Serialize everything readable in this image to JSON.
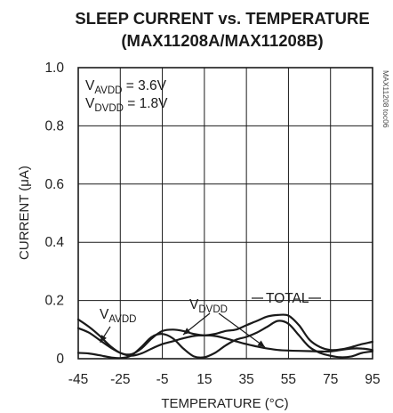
{
  "chart_data": {
    "type": "line",
    "title": "SLEEP CURRENT vs. TEMPERATURE",
    "subtitle": "(MAX11208A/MAX11208B)",
    "xlabel": "TEMPERATURE (°C)",
    "ylabel": "CURRENT (μA)",
    "xlim": [
      -45,
      95
    ],
    "ylim": [
      0,
      1.0
    ],
    "x_ticks": [
      -45,
      -25,
      -5,
      15,
      35,
      55,
      75,
      95
    ],
    "x_tick_labels": [
      "-45",
      "-25",
      "-5",
      "15",
      "35",
      "55",
      "75",
      "95"
    ],
    "y_ticks": [
      0,
      0.2,
      0.4,
      0.6,
      0.8,
      1.0
    ],
    "y_tick_labels": [
      "0",
      "0.2",
      "0.4",
      "0.6",
      "0.8",
      "1.0"
    ],
    "grid": true,
    "conditions": [
      {
        "main": "V",
        "sub": "AVDD",
        "rest": " = 3.6V"
      },
      {
        "main": "V",
        "sub": "DVDD",
        "rest": " = 1.8V"
      }
    ],
    "side_note": "MAX11208 toc06",
    "series": [
      {
        "name": "VAVDD",
        "label_main": "V",
        "label_sub": "AVDD",
        "x": [
          -45,
          -40,
          -35,
          -30,
          -25,
          -20,
          -15,
          -10,
          -5,
          0,
          5,
          10,
          15,
          20,
          25,
          30,
          35,
          40,
          45,
          50,
          55,
          60,
          65,
          70,
          75,
          80,
          85,
          90,
          95
        ],
        "values": [
          0.105,
          0.09,
          0.065,
          0.04,
          0.02,
          0.01,
          0.018,
          0.035,
          0.05,
          0.06,
          0.07,
          0.078,
          0.08,
          0.078,
          0.07,
          0.06,
          0.05,
          0.042,
          0.035,
          0.03,
          0.028,
          0.027,
          0.026,
          0.025,
          0.025,
          0.03,
          0.035,
          0.035,
          0.03
        ]
      },
      {
        "name": "VDVDD",
        "label_main": "V",
        "label_sub": "DVDD",
        "x": [
          -45,
          -40,
          -35,
          -30,
          -25,
          -20,
          -15,
          -10,
          -5,
          0,
          5,
          10,
          15,
          20,
          25,
          30,
          35,
          40,
          45,
          50,
          55,
          60,
          65,
          70,
          75,
          80,
          85,
          90,
          95
        ],
        "values": [
          0.02,
          0.018,
          0.012,
          0.005,
          0.002,
          0.01,
          0.04,
          0.075,
          0.085,
          0.07,
          0.035,
          0.008,
          0.005,
          0.02,
          0.045,
          0.065,
          0.075,
          0.09,
          0.11,
          0.13,
          0.12,
          0.08,
          0.04,
          0.02,
          0.01,
          0.005,
          0.008,
          0.02,
          0.025
        ]
      },
      {
        "name": "TOTAL",
        "label_main": "TOTAL",
        "label_sub": "",
        "x": [
          -45,
          -40,
          -35,
          -30,
          -25,
          -20,
          -15,
          -10,
          -5,
          0,
          5,
          10,
          15,
          20,
          25,
          30,
          35,
          40,
          45,
          50,
          55,
          60,
          65,
          70,
          75,
          80,
          85,
          90,
          95
        ],
        "values": [
          0.135,
          0.11,
          0.08,
          0.045,
          0.02,
          0.015,
          0.035,
          0.07,
          0.095,
          0.1,
          0.095,
          0.085,
          0.08,
          0.085,
          0.095,
          0.1,
          0.115,
          0.13,
          0.145,
          0.15,
          0.148,
          0.115,
          0.065,
          0.04,
          0.03,
          0.032,
          0.04,
          0.05,
          0.058
        ]
      }
    ]
  }
}
